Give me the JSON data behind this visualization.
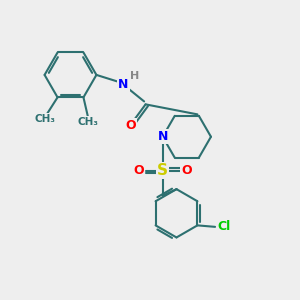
{
  "bg_color": "#eeeeee",
  "bond_color": "#2d7070",
  "bond_width": 1.5,
  "atom_colors": {
    "N": "#0000ff",
    "O": "#ff0000",
    "S": "#cccc00",
    "Cl": "#00cc00",
    "H": "#888888",
    "C": "#2d7070"
  },
  "font_size": 9,
  "fig_size": [
    3.0,
    3.0
  ],
  "dpi": 100,
  "xlim": [
    0,
    10
  ],
  "ylim": [
    0,
    10
  ]
}
